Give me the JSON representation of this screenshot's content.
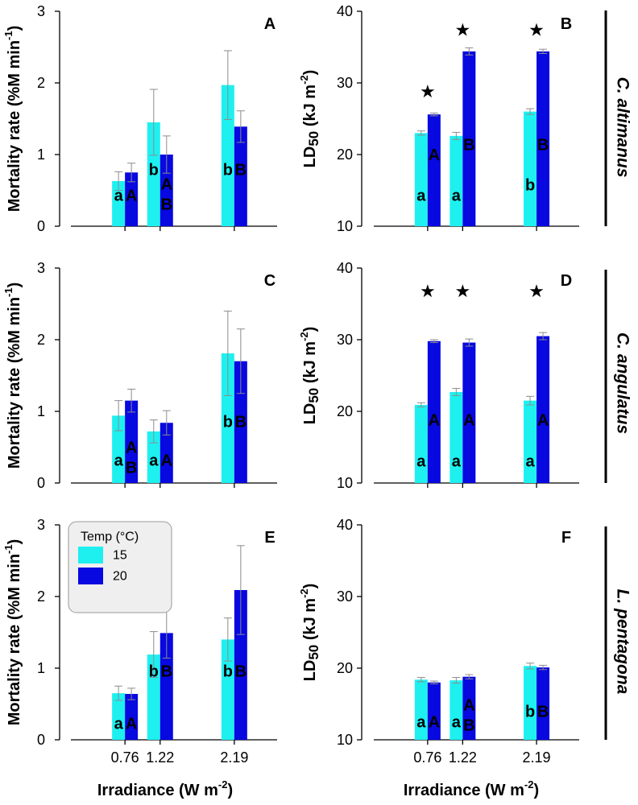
{
  "legend": {
    "title": "Temp (°C)",
    "items": [
      {
        "label": "15",
        "color": "#1EF0F0"
      },
      {
        "label": "20",
        "color": "#0808E0"
      }
    ]
  },
  "colors": {
    "error_bar": "#8C8C8C",
    "axis": "#000000"
  },
  "species": [
    "C. altimanus",
    "C. angulatus",
    "L. pentagona"
  ],
  "chart_data": [
    {
      "panel": "A",
      "type": "bar",
      "ylabel": [
        {
          "text": "Mortality rate (%M min"
        },
        {
          "text": "-1",
          "sup": true
        },
        {
          "text": ")"
        }
      ],
      "xlabel": [],
      "x": [
        0.76,
        1.22,
        2.19
      ],
      "xtick_labels": [],
      "xlim": [
        0,
        2.75
      ],
      "ylim": [
        0,
        3
      ],
      "yticks": [
        0,
        1,
        2,
        3
      ],
      "series": [
        {
          "name": "15",
          "values": [
            0.63,
            1.45,
            1.97
          ],
          "errors": [
            0.13,
            0.46,
            0.48
          ],
          "letters": [
            [
              "a"
            ],
            [
              "b"
            ],
            [
              "b"
            ]
          ]
        },
        {
          "name": "20",
          "values": [
            0.75,
            1.0,
            1.39
          ],
          "errors": [
            0.13,
            0.26,
            0.22
          ],
          "letters": [
            [
              "A"
            ],
            [
              "A",
              "B"
            ],
            [
              "B"
            ]
          ]
        }
      ],
      "stars": []
    },
    {
      "panel": "B",
      "type": "bar",
      "ylabel": [
        {
          "text": "LD"
        },
        {
          "text": "50",
          "sub": true
        },
        {
          "text": " (kJ m"
        },
        {
          "text": "-2",
          "sup": true
        },
        {
          "text": ")"
        }
      ],
      "xlabel": [],
      "x": [
        0.76,
        1.22,
        2.19
      ],
      "xtick_labels": [],
      "xlim": [
        0,
        2.75
      ],
      "ylim": [
        10,
        40
      ],
      "yticks": [
        10,
        20,
        30,
        40
      ],
      "series": [
        {
          "name": "15",
          "values": [
            23.0,
            22.6,
            26.0
          ],
          "errors": [
            0.3,
            0.5,
            0.4
          ],
          "letters": [
            [
              "a"
            ],
            [
              "a"
            ],
            [
              "b"
            ]
          ]
        },
        {
          "name": "20",
          "values": [
            25.6,
            34.4,
            34.4
          ],
          "errors": [
            0.2,
            0.5,
            0.3
          ],
          "letters": [
            [
              "A"
            ],
            [
              "B"
            ],
            [
              "B"
            ]
          ]
        }
      ],
      "stars": [
        "★",
        "★",
        "★"
      ]
    },
    {
      "panel": "C",
      "type": "bar",
      "ylabel": [
        {
          "text": "Mortality rate (%M min"
        },
        {
          "text": "-1",
          "sup": true
        },
        {
          "text": ")"
        }
      ],
      "xlabel": [],
      "x": [
        0.76,
        1.22,
        2.19
      ],
      "xtick_labels": [],
      "xlim": [
        0,
        2.75
      ],
      "ylim": [
        0,
        3
      ],
      "yticks": [
        0,
        1,
        2,
        3
      ],
      "series": [
        {
          "name": "15",
          "values": [
            0.94,
            0.72,
            1.81
          ],
          "errors": [
            0.21,
            0.16,
            0.59
          ],
          "letters": [
            [
              "a"
            ],
            [
              "a"
            ],
            [
              "b"
            ]
          ]
        },
        {
          "name": "20",
          "values": [
            1.15,
            0.84,
            1.7
          ],
          "errors": [
            0.16,
            0.17,
            0.45
          ],
          "letters": [
            [
              "A",
              "B"
            ],
            [
              "A"
            ],
            [
              "B"
            ]
          ]
        }
      ],
      "stars": []
    },
    {
      "panel": "D",
      "type": "bar",
      "ylabel": [
        {
          "text": "LD"
        },
        {
          "text": "50",
          "sub": true
        },
        {
          "text": " (kJ m"
        },
        {
          "text": "-2",
          "sup": true
        },
        {
          "text": ")"
        }
      ],
      "xlabel": [],
      "x": [
        0.76,
        1.22,
        2.19
      ],
      "xtick_labels": [],
      "xlim": [
        0,
        2.75
      ],
      "ylim": [
        10,
        40
      ],
      "yticks": [
        10,
        20,
        30,
        40
      ],
      "series": [
        {
          "name": "15",
          "values": [
            20.9,
            22.7,
            21.5
          ],
          "errors": [
            0.3,
            0.5,
            0.6
          ],
          "letters": [
            [
              "a"
            ],
            [
              "a"
            ],
            [
              "a"
            ]
          ]
        },
        {
          "name": "20",
          "values": [
            29.8,
            29.6,
            30.5
          ],
          "errors": [
            0.2,
            0.5,
            0.5
          ],
          "letters": [
            [
              "A"
            ],
            [
              "A"
            ],
            [
              "A"
            ]
          ]
        }
      ],
      "stars": [
        "★",
        "★",
        "★"
      ]
    },
    {
      "panel": "E",
      "type": "bar",
      "ylabel": [
        {
          "text": "Mortality rate (%M min"
        },
        {
          "text": "-1",
          "sup": true
        },
        {
          "text": ")"
        }
      ],
      "xlabel": [
        {
          "text": "Irradiance (W m"
        },
        {
          "text": "-2",
          "sup": true
        },
        {
          "text": ")"
        }
      ],
      "x": [
        0.76,
        1.22,
        2.19
      ],
      "xtick_labels": [
        "0.76",
        "1.22",
        "2.19"
      ],
      "xlim": [
        0,
        2.75
      ],
      "ylim": [
        0,
        3
      ],
      "yticks": [
        0,
        1,
        2,
        3
      ],
      "series": [
        {
          "name": "15",
          "values": [
            0.65,
            1.19,
            1.4
          ],
          "errors": [
            0.1,
            0.32,
            0.3
          ],
          "letters": [
            [
              "a"
            ],
            [
              "b"
            ],
            [
              "b"
            ]
          ]
        },
        {
          "name": "20",
          "values": [
            0.64,
            1.49,
            2.09
          ],
          "errors": [
            0.08,
            0.35,
            0.62
          ],
          "letters": [
            [
              "A"
            ],
            [
              "B"
            ],
            [
              "B"
            ]
          ]
        }
      ],
      "stars": []
    },
    {
      "panel": "F",
      "type": "bar",
      "ylabel": [
        {
          "text": "LD"
        },
        {
          "text": "50",
          "sub": true
        },
        {
          "text": " (kJ m"
        },
        {
          "text": "-2",
          "sup": true
        },
        {
          "text": ")"
        }
      ],
      "xlabel": [
        {
          "text": "Irradiance (W m"
        },
        {
          "text": "-2",
          "sup": true
        },
        {
          "text": ")"
        }
      ],
      "x": [
        0.76,
        1.22,
        2.19
      ],
      "xtick_labels": [
        "0.76",
        "1.22",
        "2.19"
      ],
      "xlim": [
        0,
        2.75
      ],
      "ylim": [
        10,
        40
      ],
      "yticks": [
        10,
        20,
        30,
        40
      ],
      "series": [
        {
          "name": "15",
          "values": [
            18.4,
            18.3,
            20.3
          ],
          "errors": [
            0.3,
            0.4,
            0.4
          ],
          "letters": [
            [
              "a"
            ],
            [
              "a"
            ],
            [
              "b"
            ]
          ]
        },
        {
          "name": "20",
          "values": [
            18.0,
            18.8,
            20.1
          ],
          "errors": [
            0.2,
            0.3,
            0.3
          ],
          "letters": [
            [
              "A"
            ],
            [
              "A",
              "B"
            ],
            [
              "B"
            ]
          ]
        }
      ],
      "stars": []
    }
  ]
}
